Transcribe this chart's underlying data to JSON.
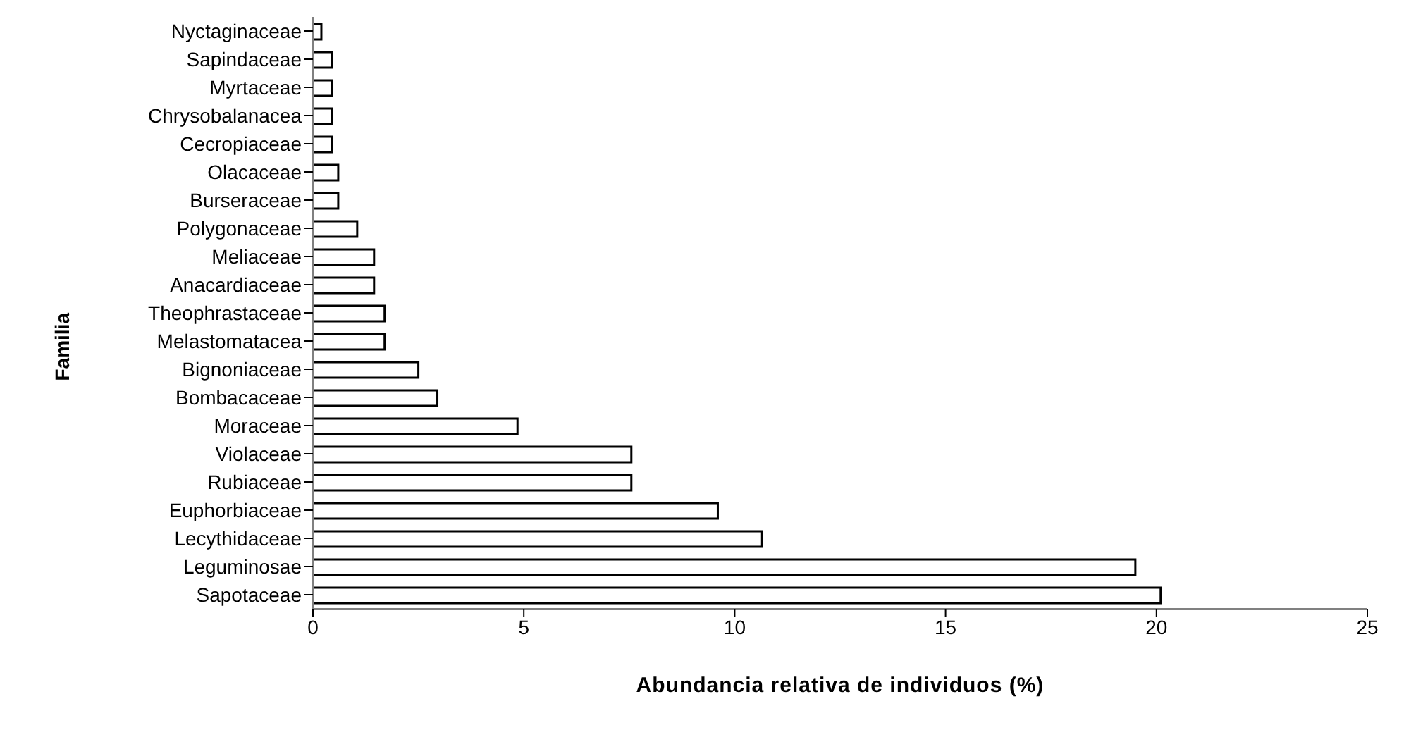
{
  "chart_data": {
    "type": "bar",
    "orientation": "horizontal",
    "xlabel": "Abundancia relativa de individuos (%)",
    "ylabel": "Familia",
    "categories": [
      "Nyctaginaceae",
      "Sapindaceae",
      "Myrtaceae",
      "Chrysobalanacea",
      "Cecropiaceae",
      "Olacaceae",
      "Burseraceae",
      "Polygonaceae",
      "Meliaceae",
      "Anacardiaceae",
      "Theophrastaceae",
      "Melastomatacea",
      "Bignoniaceae",
      "Bombacaceae",
      "Moraceae",
      "Violaceae",
      "Rubiaceae",
      "Euphorbiaceae",
      "Lecythidaceae",
      "Leguminosae",
      "Sapotaceae"
    ],
    "values": [
      0.2,
      0.45,
      0.45,
      0.45,
      0.45,
      0.6,
      0.6,
      1.05,
      1.45,
      1.45,
      1.7,
      1.7,
      2.5,
      2.95,
      4.85,
      7.55,
      7.55,
      9.6,
      10.65,
      19.5,
      20.1
    ],
    "color": "#ffffff",
    "xlim": [
      0,
      25
    ],
    "xticks": [
      0,
      5,
      10,
      15,
      20,
      25
    ],
    "grid": false,
    "legend": false
  }
}
